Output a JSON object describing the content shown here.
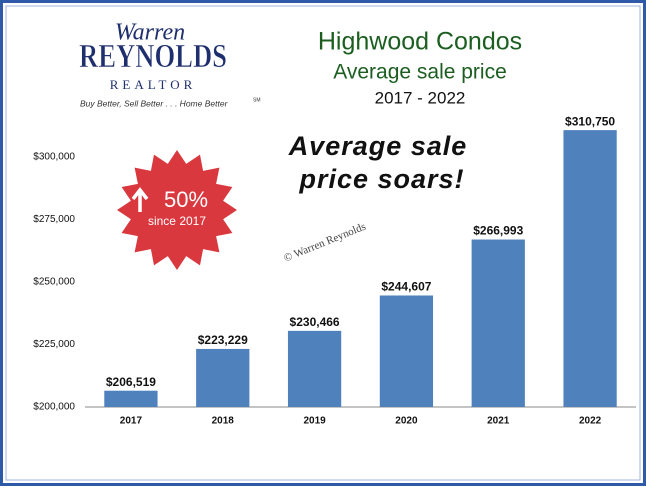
{
  "chart_data": {
    "type": "bar",
    "title": "Highwood Condos",
    "subtitle": "Average sale price",
    "period": "2017 - 2022",
    "annotation": [
      "Average sale",
      "price soars!"
    ],
    "badge": {
      "value": "50%",
      "caption": "since 2017"
    },
    "watermark": "© Warren Reynolds",
    "categories": [
      "2017",
      "2018",
      "2019",
      "2020",
      "2021",
      "2022"
    ],
    "values": [
      206519,
      223229,
      230466,
      244607,
      266993,
      310750
    ],
    "value_labels": [
      "$206,519",
      "$223,229",
      "$230,466",
      "$244,607",
      "$266,993",
      "$310,750"
    ],
    "color": "#4f81bd",
    "ylim": [
      200000,
      315000
    ],
    "yticks": [
      {
        "value": 200000,
        "label": "$200,000"
      },
      {
        "value": 225000,
        "label": "$225,000"
      },
      {
        "value": 250000,
        "label": "$250,000"
      },
      {
        "value": 275000,
        "label": "$275,000"
      },
      {
        "value": 300000,
        "label": "$300,000"
      }
    ],
    "grid": false
  },
  "logo": {
    "script": "Warren",
    "name": "REYNOLDS",
    "role": "REALTOR",
    "tagline": "Buy Better, Sell Better . . . Home Better",
    "mark": "SM"
  }
}
